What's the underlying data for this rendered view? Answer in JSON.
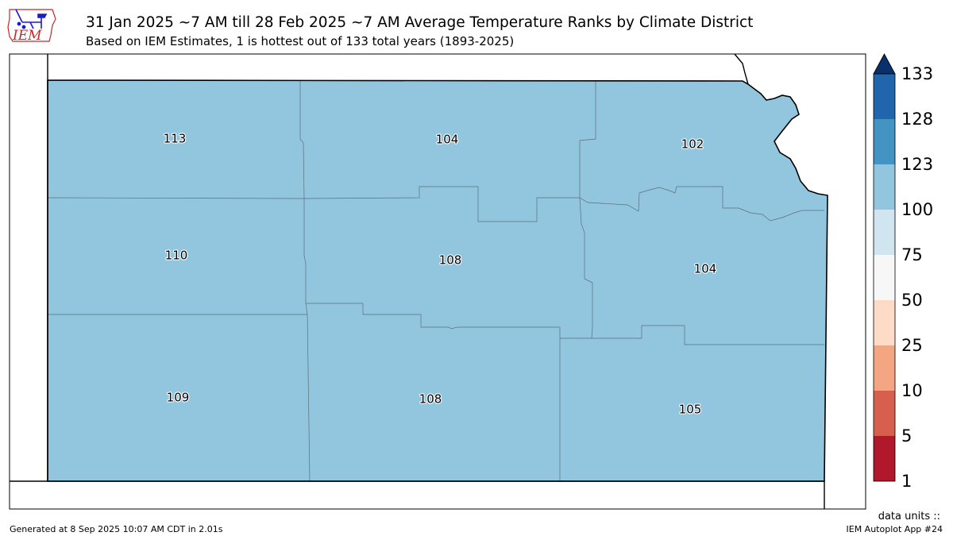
{
  "header": {
    "title": "31 Jan 2025 ~7 AM till 28 Feb 2025 ~7 AM Average Temperature Ranks by Climate District",
    "subtitle": "Based on IEM Estimates, 1 is hottest out of 133 total years (1893-2025)"
  },
  "logo": {
    "text": "IEM",
    "color": "#c82828",
    "icon_color": "#1a1ad0"
  },
  "map": {
    "district_color": "#92c5de",
    "outline_color": "#000000",
    "divider_color": "#5a6f7e",
    "districts": [
      {
        "name": "northwest",
        "rank": "113"
      },
      {
        "name": "north-central",
        "rank": "104"
      },
      {
        "name": "northeast",
        "rank": "102"
      },
      {
        "name": "west-central",
        "rank": "110"
      },
      {
        "name": "central",
        "rank": "108"
      },
      {
        "name": "east-central",
        "rank": "104"
      },
      {
        "name": "southwest",
        "rank": "109"
      },
      {
        "name": "south-central",
        "rank": "108"
      },
      {
        "name": "southeast",
        "rank": "105"
      }
    ]
  },
  "colorbar": {
    "labels": [
      "133",
      "128",
      "123",
      "100",
      "75",
      "50",
      "25",
      "10",
      "5",
      "1"
    ],
    "colors": [
      "#08306b",
      "#2166ac",
      "#4393c3",
      "#92c5de",
      "#d1e5f0",
      "#f7f7f7",
      "#fddbc7",
      "#f4a582",
      "#d6604d",
      "#b2182b"
    ],
    "units_label": "data units ::"
  },
  "footer": {
    "generated": "Generated at 8 Sep 2025 10:07 AM CDT in 2.01s",
    "app": "IEM Autoplot App #24"
  }
}
